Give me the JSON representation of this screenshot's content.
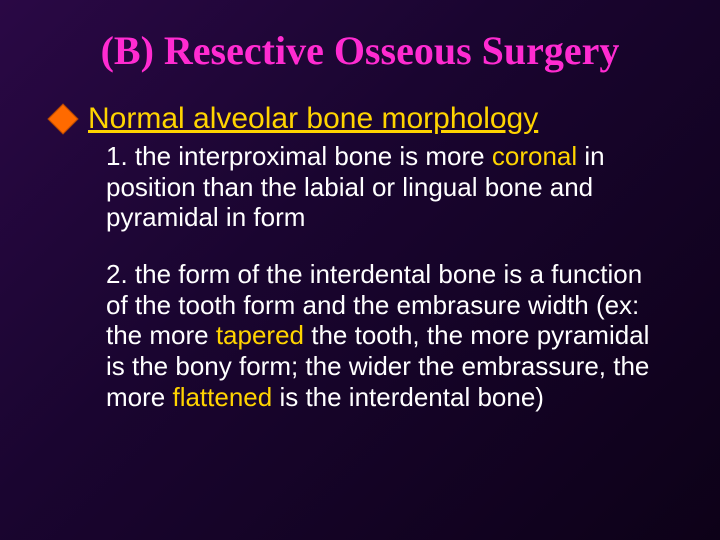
{
  "colors": {
    "title": "#ff2bd1",
    "subheading": "#ffd400",
    "body": "#ffffff",
    "keyword": "#ffd400",
    "diamond_fill": "#ff6a00",
    "diamond_stroke": "#b34700",
    "bg_start": "#2a0845",
    "bg_mid": "#1a0530",
    "bg_end": "#0d0118"
  },
  "typography": {
    "title_family": "Times New Roman",
    "title_size_pt": 30,
    "title_weight": "bold",
    "body_family": "Comic Sans MS",
    "subheading_size_pt": 23,
    "body_size_pt": 20,
    "line_height": 1.18
  },
  "title": "(B)  Resective Osseous Surgery",
  "subheading": "Normal alveolar bone morphology",
  "items": [
    {
      "prefix": "1. the interproximal bone is more ",
      "kw1": "coronal",
      "mid1": " in position than the labial or lingual bone and pyramidal in form",
      "kw2": "",
      "mid2": "",
      "kw3": "",
      "tail": ""
    },
    {
      "prefix": "2. the form of the interdental bone is a function of the tooth form and the embrasure width (ex: the more ",
      "kw1": "tapered",
      "mid1": " the tooth, the more pyramidal is the bony form; the wider the embrassure, the more ",
      "kw2": "flattened",
      "mid2": " is the interdental bone)",
      "kw3": "",
      "tail": ""
    }
  ]
}
